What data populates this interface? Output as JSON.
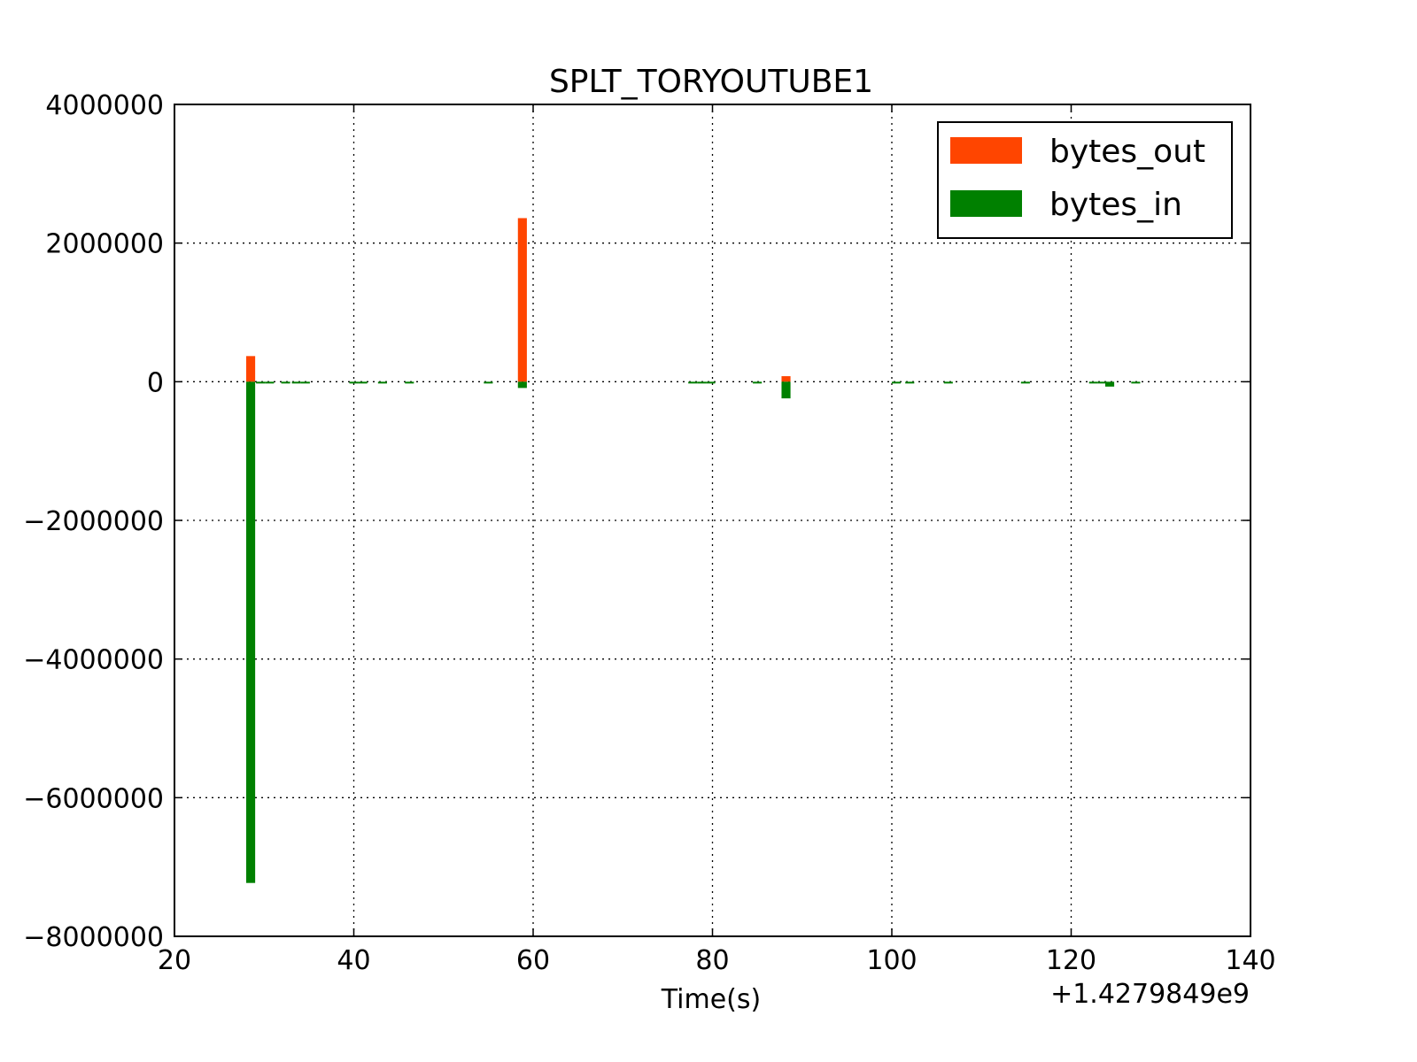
{
  "chart_data": {
    "type": "bar",
    "title": "SPLT_TORYOUTUBE1",
    "xlabel": "Time(s)",
    "ylabel": "",
    "x_offset_label": "+1.4279849e9",
    "xlim": [
      20,
      140
    ],
    "ylim": [
      -8000000,
      4000000
    ],
    "x_ticks": [
      20,
      40,
      60,
      80,
      100,
      120,
      140
    ],
    "x_tick_labels": [
      "20",
      "40",
      "60",
      "80",
      "100",
      "120",
      "140"
    ],
    "y_ticks": [
      4000000,
      2000000,
      0,
      -2000000,
      -4000000,
      -6000000,
      -8000000
    ],
    "y_tick_labels": [
      "4000000",
      "2000000",
      "0",
      "−2000000",
      "−4000000",
      "−6000000",
      "−8000000"
    ],
    "grid": true,
    "legend_position": "top-right",
    "bar_width": 1.0,
    "series": [
      {
        "name": "bytes_out",
        "color": "#ff4500",
        "points": [
          {
            "x": 28.5,
            "y": 370000
          },
          {
            "x": 58.8,
            "y": 2360000
          },
          {
            "x": 88.2,
            "y": 80000
          }
        ]
      },
      {
        "name": "bytes_in",
        "color": "#008000",
        "points": [
          {
            "x": 28.5,
            "y": -7230000
          },
          {
            "x": 29.6,
            "y": -20000
          },
          {
            "x": 30.6,
            "y": -20000
          },
          {
            "x": 32.4,
            "y": -20000
          },
          {
            "x": 33.6,
            "y": -20000
          },
          {
            "x": 34.6,
            "y": -20000
          },
          {
            "x": 40.0,
            "y": -15000
          },
          {
            "x": 41.0,
            "y": -15000
          },
          {
            "x": 43.2,
            "y": -15000
          },
          {
            "x": 46.2,
            "y": -15000
          },
          {
            "x": 55.0,
            "y": -15000
          },
          {
            "x": 58.8,
            "y": -90000
          },
          {
            "x": 77.8,
            "y": -20000
          },
          {
            "x": 78.8,
            "y": -20000
          },
          {
            "x": 79.8,
            "y": -20000
          },
          {
            "x": 85.0,
            "y": -15000
          },
          {
            "x": 88.2,
            "y": -240000
          },
          {
            "x": 100.5,
            "y": -15000
          },
          {
            "x": 102.0,
            "y": -15000
          },
          {
            "x": 106.3,
            "y": -15000
          },
          {
            "x": 114.9,
            "y": -15000
          },
          {
            "x": 122.5,
            "y": -20000
          },
          {
            "x": 123.5,
            "y": -20000
          },
          {
            "x": 124.3,
            "y": -70000
          },
          {
            "x": 127.2,
            "y": -15000
          }
        ]
      }
    ]
  }
}
